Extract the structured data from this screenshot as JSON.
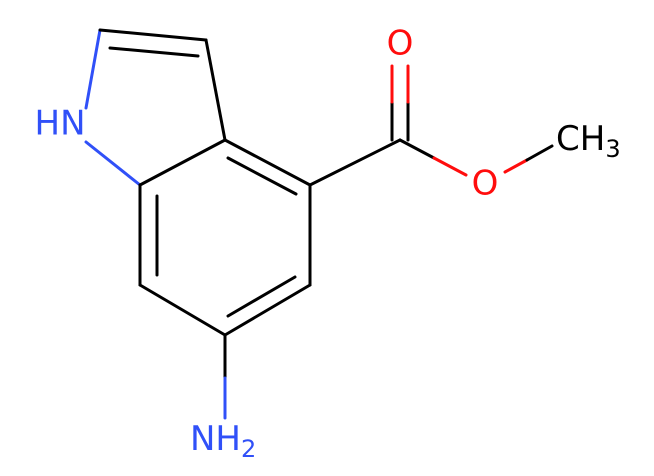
{
  "atoms": [
    {
      "label": "HN"
    },
    {
      "label": "O"
    },
    {
      "label": "O"
    },
    {
      "label": "CH",
      "subscript": "3"
    },
    {
      "label": "NH",
      "subscript": "2"
    }
  ]
}
